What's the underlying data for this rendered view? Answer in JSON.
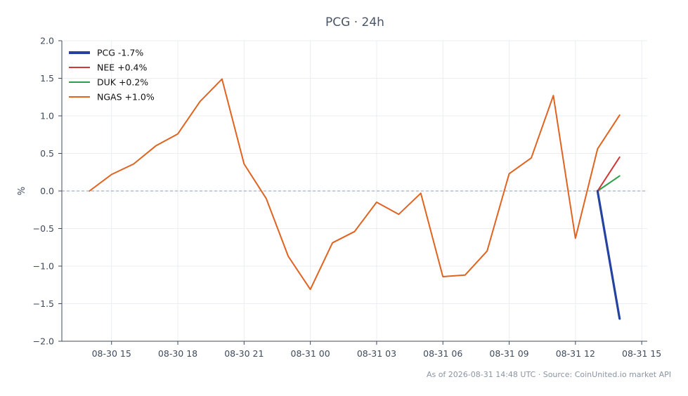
{
  "chart_data": {
    "type": "line",
    "title": "PCG · 24h",
    "xlabel": "",
    "ylabel": "%",
    "ylim": [
      -2.0,
      2.0
    ],
    "yticks": [
      2.0,
      1.5,
      1.0,
      0.5,
      0.0,
      -0.5,
      -1.0,
      -1.5,
      -2.0
    ],
    "ytick_labels": [
      "2.0",
      "1.5",
      "1.0",
      "0.5",
      "0.0",
      "−0.5",
      "−1.0",
      "−1.5",
      "−2.0"
    ],
    "xlim": [
      "2026-08-30 12:45",
      "2026-08-31 15:15"
    ],
    "xticks": [
      "2026-08-30 15:00",
      "2026-08-30 18:00",
      "2026-08-30 21:00",
      "2026-08-31 00:00",
      "2026-08-31 03:00",
      "2026-08-31 06:00",
      "2026-08-31 09:00",
      "2026-08-31 12:00",
      "2026-08-31 15:00"
    ],
    "xtick_labels": [
      "08-30 15",
      "08-30 18",
      "08-30 21",
      "08-31 00",
      "08-31 03",
      "08-31 06",
      "08-31 09",
      "08-31 12",
      "08-31 15"
    ],
    "grid": true,
    "zero_line": true,
    "legend_position": "top-left",
    "series": [
      {
        "name": "PCG -1.7%",
        "color": "#2443a0",
        "emphasis": true,
        "points": [
          {
            "x": "2026-08-31 13:00",
            "y": 0.0
          },
          {
            "x": "2026-08-31 14:00",
            "y": -1.7
          }
        ]
      },
      {
        "name": "NEE +0.4%",
        "color": "#d03838",
        "points": [
          {
            "x": "2026-08-31 13:00",
            "y": 0.0
          },
          {
            "x": "2026-08-31 14:00",
            "y": 0.45
          }
        ]
      },
      {
        "name": "DUK +0.2%",
        "color": "#2e9e4a",
        "points": [
          {
            "x": "2026-08-31 13:00",
            "y": 0.0
          },
          {
            "x": "2026-08-31 14:00",
            "y": 0.2
          }
        ]
      },
      {
        "name": "NGAS +1.0%",
        "color": "#e0631f",
        "points": [
          {
            "x": "2026-08-30 14:00",
            "y": 0.0
          },
          {
            "x": "2026-08-30 15:00",
            "y": 0.22
          },
          {
            "x": "2026-08-30 16:00",
            "y": 0.36
          },
          {
            "x": "2026-08-30 17:00",
            "y": 0.6
          },
          {
            "x": "2026-08-30 18:00",
            "y": 0.76
          },
          {
            "x": "2026-08-30 19:00",
            "y": 1.19
          },
          {
            "x": "2026-08-30 20:00",
            "y": 1.49
          },
          {
            "x": "2026-08-30 21:00",
            "y": 0.36
          },
          {
            "x": "2026-08-30 22:00",
            "y": -0.1
          },
          {
            "x": "2026-08-30 23:00",
            "y": -0.87
          },
          {
            "x": "2026-08-31 00:00",
            "y": -1.31
          },
          {
            "x": "2026-08-31 01:00",
            "y": -0.69
          },
          {
            "x": "2026-08-31 02:00",
            "y": -0.54
          },
          {
            "x": "2026-08-31 03:00",
            "y": -0.15
          },
          {
            "x": "2026-08-31 04:00",
            "y": -0.31
          },
          {
            "x": "2026-08-31 05:00",
            "y": -0.03
          },
          {
            "x": "2026-08-31 06:00",
            "y": -1.14
          },
          {
            "x": "2026-08-31 07:00",
            "y": -1.12
          },
          {
            "x": "2026-08-31 08:00",
            "y": -0.8
          },
          {
            "x": "2026-08-31 09:00",
            "y": 0.23
          },
          {
            "x": "2026-08-31 10:00",
            "y": 0.44
          },
          {
            "x": "2026-08-31 11:00",
            "y": 1.27
          },
          {
            "x": "2026-08-31 12:00",
            "y": -0.63
          },
          {
            "x": "2026-08-31 13:00",
            "y": 0.56
          },
          {
            "x": "2026-08-31 14:00",
            "y": 1.01
          }
        ]
      }
    ],
    "footer": "As of 2026-08-31 14:48 UTC · Source: CoinUnited.io market API"
  }
}
